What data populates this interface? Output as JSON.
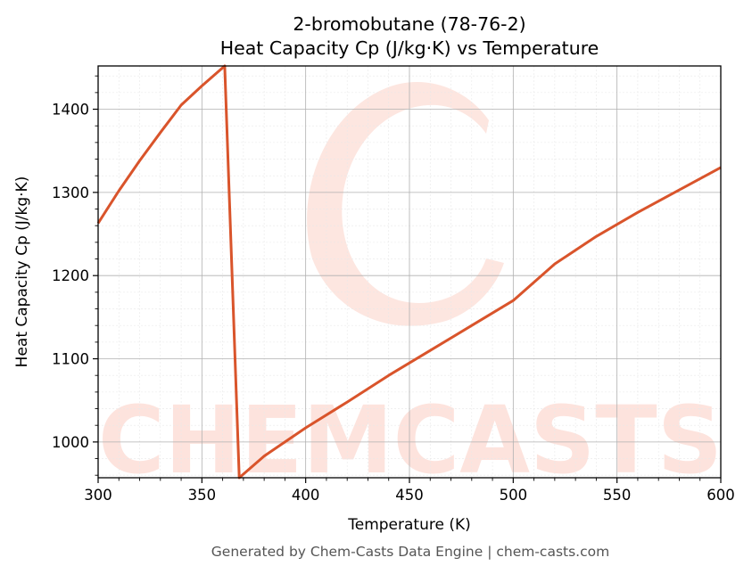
{
  "chart_data": {
    "type": "line",
    "title": "2-bromobutane (78-76-2)",
    "subtitle": "Heat Capacity Cp (J/kg·K) vs Temperature",
    "xlabel": "Temperature (K)",
    "ylabel": "Heat Capacity Cp (J/kg·K)",
    "xlim": [
      300,
      600
    ],
    "ylim": [
      957,
      1452
    ],
    "xticks": [
      300,
      350,
      400,
      450,
      500,
      550,
      600
    ],
    "yticks": [
      1000,
      1100,
      1200,
      1300,
      1400
    ],
    "grid": true,
    "series": [
      {
        "color": "#d9542b",
        "points": [
          [
            300,
            1263
          ],
          [
            310,
            1302
          ],
          [
            320,
            1338
          ],
          [
            330,
            1372
          ],
          [
            340,
            1405
          ],
          [
            350,
            1428
          ],
          [
            361,
            1452
          ],
          [
            368,
            957
          ],
          [
            380,
            983
          ],
          [
            400,
            1017
          ],
          [
            420,
            1048
          ],
          [
            440,
            1080
          ],
          [
            460,
            1110
          ],
          [
            480,
            1140
          ],
          [
            500,
            1170
          ],
          [
            520,
            1214
          ],
          [
            540,
            1247
          ],
          [
            560,
            1276
          ],
          [
            580,
            1303
          ],
          [
            600,
            1330
          ]
        ]
      }
    ]
  },
  "watermark": {
    "text": "CHEMCASTS",
    "color": "#fde3dd"
  },
  "footer": {
    "text": "Generated by Chem-Casts Data Engine | chem-casts.com"
  }
}
